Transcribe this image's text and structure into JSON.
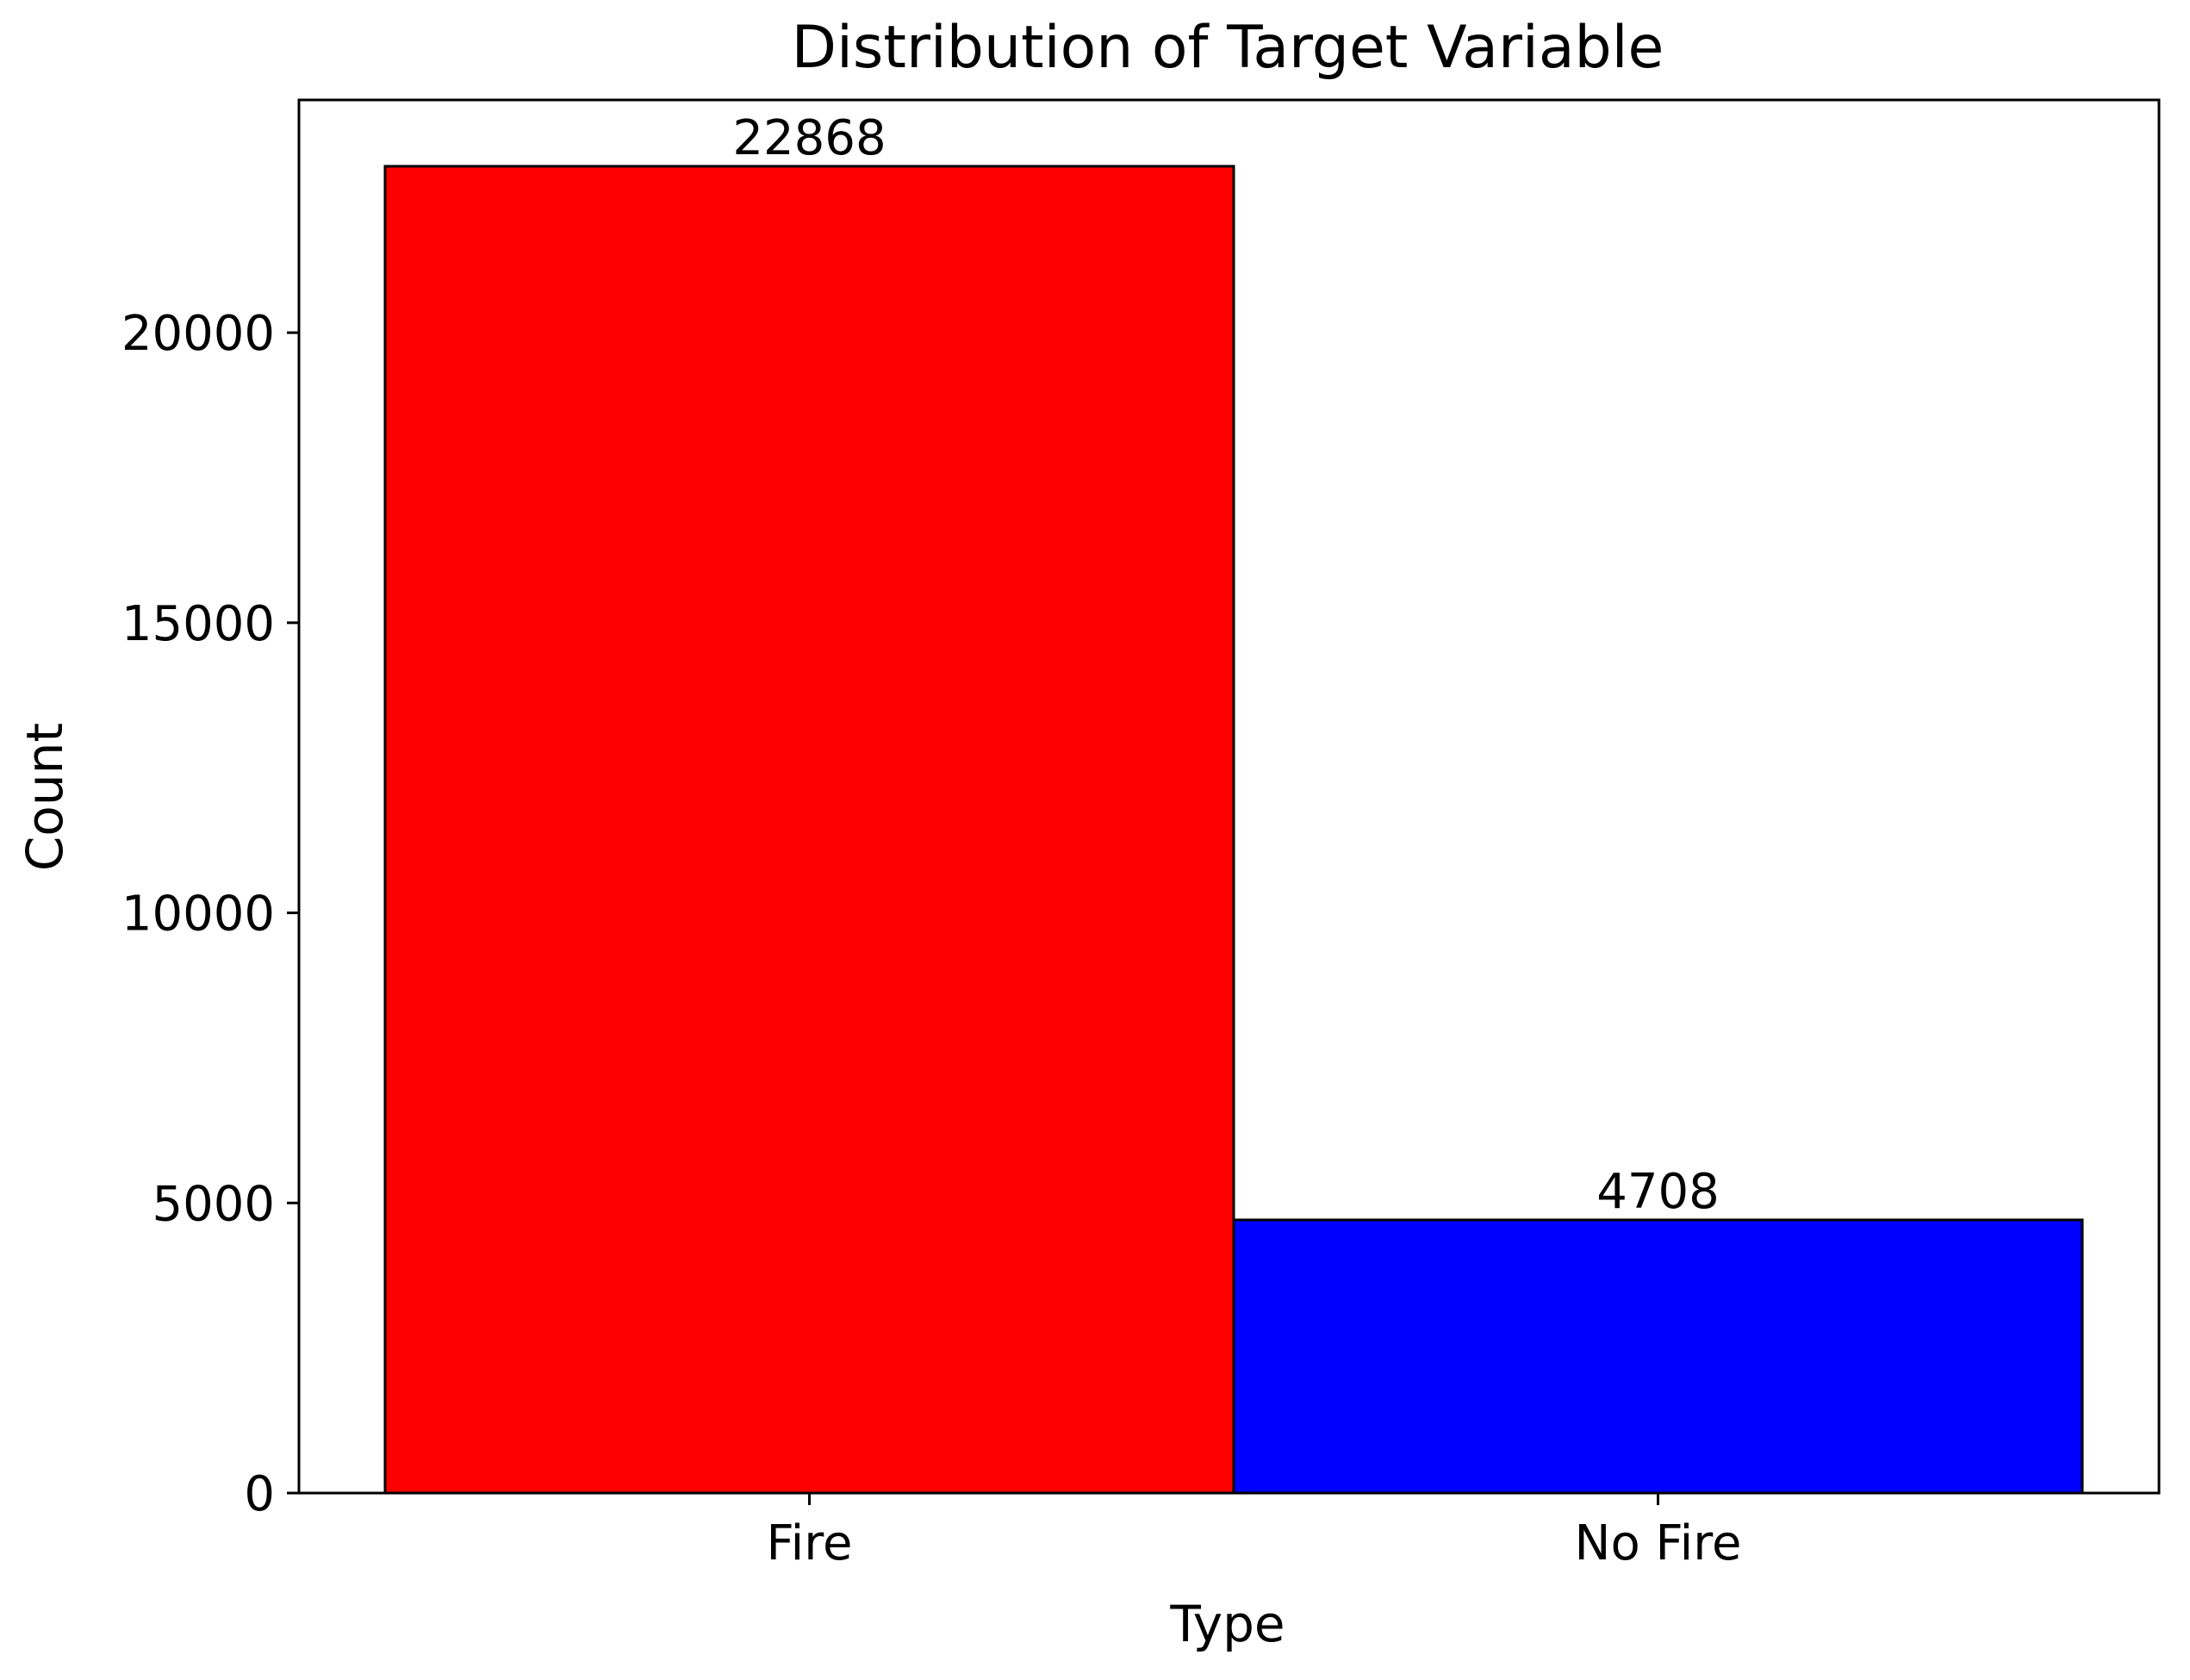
{
  "chart_data": {
    "type": "bar",
    "title": "Distribution of Target Variable",
    "xlabel": "Type",
    "ylabel": "Count",
    "categories": [
      "Fire",
      "No Fire"
    ],
    "values": [
      22868,
      4708
    ],
    "bar_labels": [
      "22868",
      "4708"
    ],
    "colors": [
      "#ff0000",
      "#0000ff"
    ],
    "edge_color": "#000000",
    "yticks": [
      0,
      5000,
      10000,
      15000,
      20000
    ],
    "ytick_labels": [
      "0",
      "5000",
      "10000",
      "15000",
      "20000"
    ],
    "ylim": [
      0,
      24011
    ],
    "grid": false,
    "legend": false
  }
}
